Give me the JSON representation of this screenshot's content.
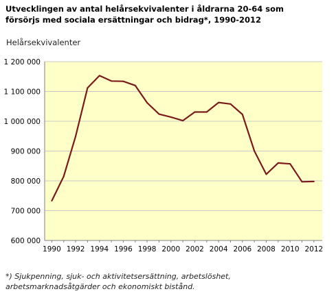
{
  "chart_data": {
    "type": "line",
    "title_line1": "Utvecklingen av antal helårsekvivalenter i åldrarna 20-64 som",
    "title_line2": "försörjs med sociala ersättningar och bidrag*, 1990-2012",
    "ylabel": "Helårsekvivalenter",
    "xlabel": "",
    "ylim": [
      600000,
      1200000
    ],
    "y_ticks": [
      600000,
      700000,
      800000,
      900000,
      1000000,
      1100000,
      1200000
    ],
    "y_tick_labels": [
      "600 000",
      "700 000",
      "800 000",
      "900 000",
      "1 000 000",
      "1 100 000",
      "1 200 000"
    ],
    "x_ticks": [
      1990,
      1992,
      1994,
      1996,
      1998,
      2000,
      2002,
      2004,
      2006,
      2008,
      2010,
      2012
    ],
    "x_tick_labels": [
      "1990",
      "1992",
      "1994",
      "1996",
      "1998",
      "2000",
      "2002",
      "2004",
      "2006",
      "2008",
      "2010",
      "2012"
    ],
    "grid": true,
    "series": [
      {
        "color": "#7b1a1a",
        "x": [
          1990,
          1991,
          1992,
          1993,
          1994,
          1995,
          1996,
          1997,
          1998,
          1999,
          2000,
          2001,
          2002,
          2003,
          2004,
          2005,
          2006,
          2007,
          2008,
          2009,
          2010,
          2011,
          2012
        ],
        "values": [
          733000,
          815000,
          950000,
          1112000,
          1153000,
          1135000,
          1134000,
          1120000,
          1062000,
          1024000,
          1014000,
          1002000,
          1031000,
          1031000,
          1063000,
          1058000,
          1023000,
          900000,
          822000,
          860000,
          857000,
          797000,
          798000
        ]
      }
    ]
  },
  "footnote": {
    "line1": "*) Sjukpenning, sjuk- och aktivitetsersättning, arbetslöshet,",
    "line2": "arbetsmarknadsåtgärder och ekonomiskt bistånd."
  },
  "colors": {
    "plot_background": "#ffffc8",
    "grid": "#c8c8c8",
    "line": "#7b1a1a"
  }
}
